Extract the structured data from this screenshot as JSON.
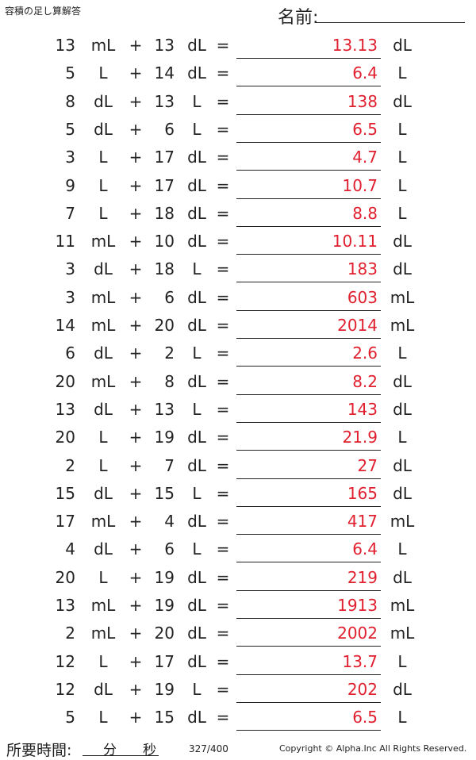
{
  "header": {
    "title": "容積の足し算解答",
    "name_label": "名前:"
  },
  "rows": [
    {
      "a": "13",
      "ua": "mL",
      "b": "13",
      "ub": "dL",
      "ans": "13.13",
      "uans": "dL"
    },
    {
      "a": "5",
      "ua": "L",
      "b": "14",
      "ub": "dL",
      "ans": "6.4",
      "uans": "L"
    },
    {
      "a": "8",
      "ua": "dL",
      "b": "13",
      "ub": "L",
      "ans": "138",
      "uans": "dL"
    },
    {
      "a": "5",
      "ua": "dL",
      "b": "6",
      "ub": "L",
      "ans": "6.5",
      "uans": "L"
    },
    {
      "a": "3",
      "ua": "L",
      "b": "17",
      "ub": "dL",
      "ans": "4.7",
      "uans": "L"
    },
    {
      "a": "9",
      "ua": "L",
      "b": "17",
      "ub": "dL",
      "ans": "10.7",
      "uans": "L"
    },
    {
      "a": "7",
      "ua": "L",
      "b": "18",
      "ub": "dL",
      "ans": "8.8",
      "uans": "L"
    },
    {
      "a": "11",
      "ua": "mL",
      "b": "10",
      "ub": "dL",
      "ans": "10.11",
      "uans": "dL"
    },
    {
      "a": "3",
      "ua": "dL",
      "b": "18",
      "ub": "L",
      "ans": "183",
      "uans": "dL"
    },
    {
      "a": "3",
      "ua": "mL",
      "b": "6",
      "ub": "dL",
      "ans": "603",
      "uans": "mL"
    },
    {
      "a": "14",
      "ua": "mL",
      "b": "20",
      "ub": "dL",
      "ans": "2014",
      "uans": "mL"
    },
    {
      "a": "6",
      "ua": "dL",
      "b": "2",
      "ub": "L",
      "ans": "2.6",
      "uans": "L"
    },
    {
      "a": "20",
      "ua": "mL",
      "b": "8",
      "ub": "dL",
      "ans": "8.2",
      "uans": "dL"
    },
    {
      "a": "13",
      "ua": "dL",
      "b": "13",
      "ub": "L",
      "ans": "143",
      "uans": "dL"
    },
    {
      "a": "20",
      "ua": "L",
      "b": "19",
      "ub": "dL",
      "ans": "21.9",
      "uans": "L"
    },
    {
      "a": "2",
      "ua": "L",
      "b": "7",
      "ub": "dL",
      "ans": "27",
      "uans": "dL"
    },
    {
      "a": "15",
      "ua": "dL",
      "b": "15",
      "ub": "L",
      "ans": "165",
      "uans": "dL"
    },
    {
      "a": "17",
      "ua": "mL",
      "b": "4",
      "ub": "dL",
      "ans": "417",
      "uans": "mL"
    },
    {
      "a": "4",
      "ua": "dL",
      "b": "6",
      "ub": "L",
      "ans": "6.4",
      "uans": "L"
    },
    {
      "a": "20",
      "ua": "L",
      "b": "19",
      "ub": "dL",
      "ans": "219",
      "uans": "dL"
    },
    {
      "a": "13",
      "ua": "mL",
      "b": "19",
      "ub": "dL",
      "ans": "1913",
      "uans": "mL"
    },
    {
      "a": "2",
      "ua": "mL",
      "b": "20",
      "ub": "dL",
      "ans": "2002",
      "uans": "mL"
    },
    {
      "a": "12",
      "ua": "L",
      "b": "17",
      "ub": "dL",
      "ans": "13.7",
      "uans": "L"
    },
    {
      "a": "12",
      "ua": "dL",
      "b": "19",
      "ub": "L",
      "ans": "202",
      "uans": "dL"
    },
    {
      "a": "5",
      "ua": "L",
      "b": "15",
      "ub": "dL",
      "ans": "6.5",
      "uans": "L"
    }
  ],
  "symbols": {
    "plus": "+",
    "equals": "="
  },
  "footer": {
    "time_label": "所要時間:",
    "minutes": "分",
    "seconds": "秒",
    "page": "327/400",
    "copyright": "Copyright © Alpha.Inc All Rights Reserved."
  }
}
